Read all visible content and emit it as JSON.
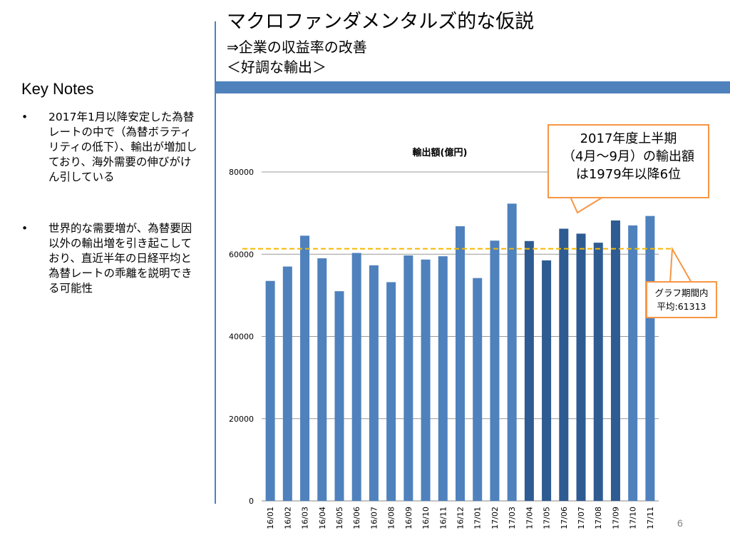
{
  "header": {
    "title": "マクロファンダメンタルズ的な仮説",
    "subtitle1": "⇒企業の収益率の改善",
    "subtitle2": "＜好調な輸出＞"
  },
  "notes": {
    "heading": "Key Notes",
    "bullets": [
      "2017年1月以降安定した為替レートの中で（為替ボラティリティの低下）、輸出が増加しており、海外需要の伸びがけん引している",
      "世界的な需要増が、為替要因以外の輸出増を引き起こしており、直近半年の日経平均と為替レートの乖離を説明できる可能性"
    ],
    "bullet_symbol": "•"
  },
  "callouts": {
    "h1": [
      "2017年度上半期",
      "（4月～9月）の輸出額",
      "は1979年以降6位"
    ],
    "avg": [
      "グラフ期間内",
      "平均:61313"
    ]
  },
  "page_number": "6",
  "colors": {
    "bar_normal": "#4f81bd",
    "bar_highlight": "#2e5b92",
    "average_line": "#f5b800",
    "accent": "#4f81bd",
    "callout_border": "#f79646"
  },
  "chart_data": {
    "type": "bar",
    "title": "輸出額(億円)",
    "xlabel": "",
    "ylabel": "",
    "ylim": [
      0,
      80000
    ],
    "yticks": [
      0,
      20000,
      40000,
      60000,
      80000
    ],
    "categories": [
      "16/01",
      "16/02",
      "16/03",
      "16/04",
      "16/05",
      "16/06",
      "16/07",
      "16/08",
      "16/09",
      "16/10",
      "16/11",
      "16/12",
      "17/01",
      "17/02",
      "17/03",
      "17/04",
      "17/05",
      "17/06",
      "17/07",
      "17/08",
      "17/09",
      "17/10",
      "17/11"
    ],
    "values": [
      53500,
      57000,
      64500,
      59000,
      51000,
      60300,
      57300,
      53200,
      59700,
      58700,
      59500,
      66800,
      54200,
      63300,
      72300,
      63200,
      58500,
      66200,
      65000,
      62800,
      68200,
      67000,
      69300
    ],
    "highlighted": [
      "17/04",
      "17/05",
      "17/06",
      "17/07",
      "17/08",
      "17/09"
    ],
    "average": 61313,
    "grid": true,
    "legend": "none"
  }
}
